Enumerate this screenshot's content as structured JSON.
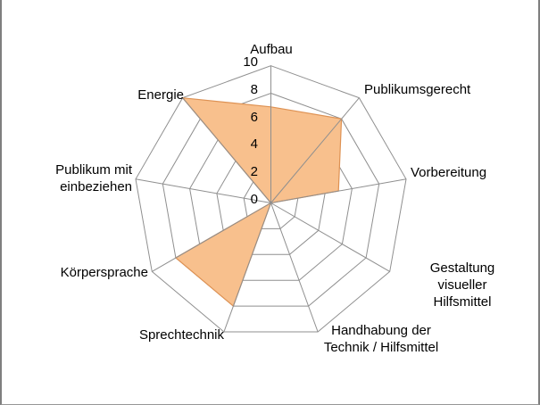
{
  "chart_data": {
    "type": "radar",
    "categories": [
      "Aufbau",
      "Publikumsgerecht",
      "Vorbereitung",
      "Gestaltung visueller\nHilfsmittel",
      "Handhabung der\nTechnik / Hilfsmittel",
      "Sprechtechnik",
      "Körpersprache",
      "Publikum mit\neinbeziehen",
      "Energie"
    ],
    "values": [
      7,
      8,
      5,
      0,
      0,
      8,
      8,
      0,
      10
    ],
    "radial_ticks": [
      0,
      2,
      4,
      6,
      8,
      10
    ],
    "rmin": 0,
    "rmax": 10,
    "grid": true,
    "legend": "none",
    "title": "",
    "colors": {
      "series_fill": "#F8C08D",
      "series_border": "#DE9254",
      "gridline": "#8F8F8F",
      "label_text": "#000000",
      "frame_border": "#7F7F7F",
      "background": "#FFFFFF"
    }
  }
}
